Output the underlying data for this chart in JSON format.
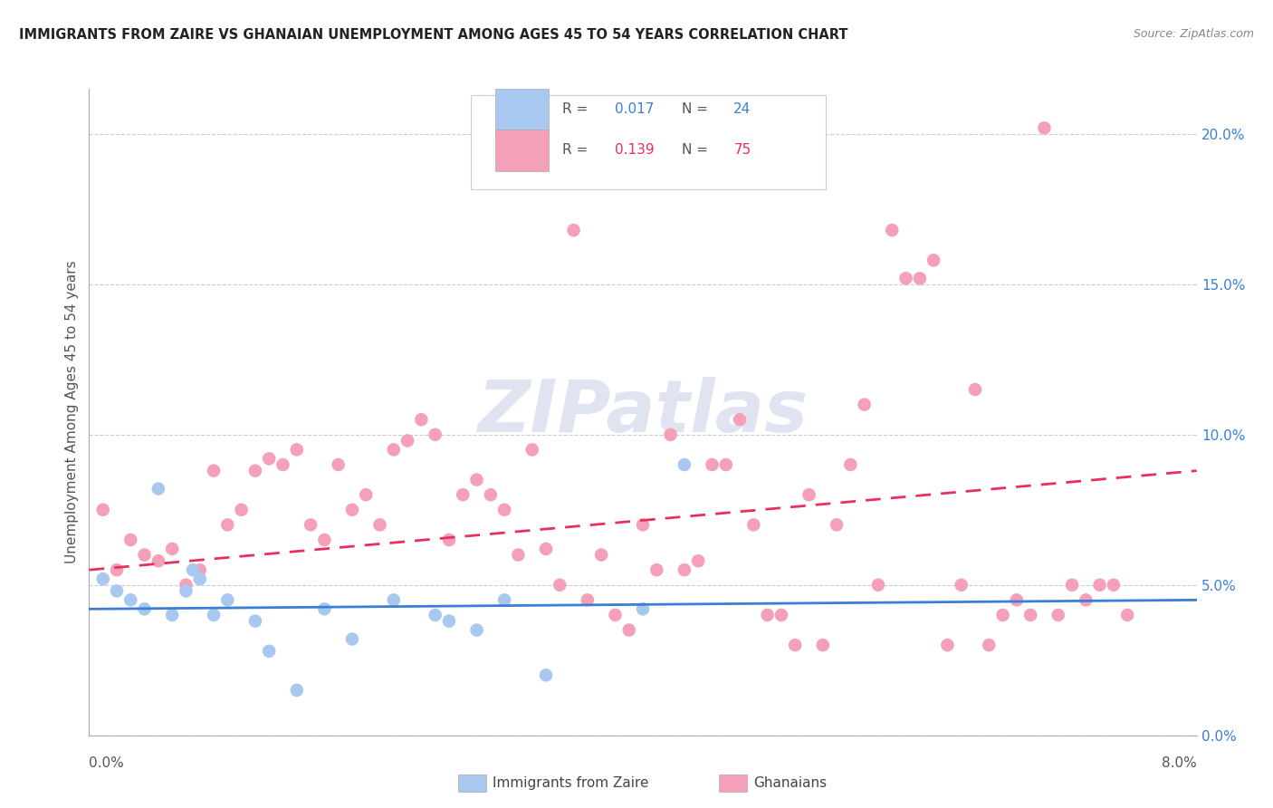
{
  "title": "IMMIGRANTS FROM ZAIRE VS GHANAIAN UNEMPLOYMENT AMONG AGES 45 TO 54 YEARS CORRELATION CHART",
  "source": "Source: ZipAtlas.com",
  "ylabel": "Unemployment Among Ages 45 to 54 years",
  "right_yticks": [
    "0.0%",
    "5.0%",
    "10.0%",
    "15.0%",
    "20.0%"
  ],
  "right_ytick_vals": [
    0.0,
    5.0,
    10.0,
    15.0,
    20.0
  ],
  "zaire_color": "#a8c8f0",
  "ghana_color": "#f4a0b8",
  "zaire_line_color": "#3a7fd5",
  "ghana_line_color": "#e8305a",
  "watermark_color": "#e0e4f0",
  "zaire_points_x": [
    0.001,
    0.002,
    0.003,
    0.004,
    0.005,
    0.006,
    0.007,
    0.0075,
    0.008,
    0.009,
    0.01,
    0.012,
    0.013,
    0.015,
    0.017,
    0.019,
    0.022,
    0.025,
    0.026,
    0.028,
    0.03,
    0.033,
    0.04,
    0.043
  ],
  "zaire_points_y": [
    5.2,
    4.8,
    4.5,
    4.2,
    8.2,
    4.0,
    4.8,
    5.5,
    5.2,
    4.0,
    4.5,
    3.8,
    2.8,
    1.5,
    4.2,
    3.2,
    4.5,
    4.0,
    3.8,
    3.5,
    4.5,
    2.0,
    4.2,
    9.0
  ],
  "ghana_points_x": [
    0.001,
    0.002,
    0.003,
    0.004,
    0.005,
    0.006,
    0.007,
    0.008,
    0.009,
    0.01,
    0.011,
    0.012,
    0.013,
    0.014,
    0.015,
    0.016,
    0.017,
    0.018,
    0.019,
    0.02,
    0.021,
    0.022,
    0.023,
    0.024,
    0.025,
    0.026,
    0.027,
    0.028,
    0.029,
    0.03,
    0.031,
    0.032,
    0.033,
    0.034,
    0.035,
    0.036,
    0.037,
    0.038,
    0.039,
    0.04,
    0.041,
    0.042,
    0.043,
    0.044,
    0.045,
    0.046,
    0.047,
    0.048,
    0.049,
    0.05,
    0.051,
    0.052,
    0.053,
    0.054,
    0.055,
    0.056,
    0.057,
    0.058,
    0.059,
    0.06,
    0.061,
    0.062,
    0.063,
    0.064,
    0.065,
    0.066,
    0.067,
    0.068,
    0.069,
    0.07,
    0.071,
    0.072,
    0.073,
    0.074,
    0.075
  ],
  "ghana_points_y": [
    7.5,
    5.5,
    6.5,
    6.0,
    5.8,
    6.2,
    5.0,
    5.5,
    8.8,
    7.0,
    7.5,
    8.8,
    9.2,
    9.0,
    9.5,
    7.0,
    6.5,
    9.0,
    7.5,
    8.0,
    7.0,
    9.5,
    9.8,
    10.5,
    10.0,
    6.5,
    8.0,
    8.5,
    8.0,
    7.5,
    6.0,
    9.5,
    6.2,
    5.0,
    16.8,
    4.5,
    6.0,
    4.0,
    3.5,
    7.0,
    5.5,
    10.0,
    5.5,
    5.8,
    9.0,
    9.0,
    10.5,
    7.0,
    4.0,
    4.0,
    3.0,
    8.0,
    3.0,
    7.0,
    9.0,
    11.0,
    5.0,
    16.8,
    15.2,
    15.2,
    15.8,
    3.0,
    5.0,
    11.5,
    3.0,
    4.0,
    4.5,
    4.0,
    20.2,
    4.0,
    5.0,
    4.5,
    5.0,
    5.0,
    4.0
  ],
  "zaire_line_x": [
    0.0,
    0.08
  ],
  "zaire_line_y": [
    4.2,
    4.5
  ],
  "ghana_line_x": [
    0.0,
    0.08
  ],
  "ghana_line_y": [
    5.5,
    8.8
  ],
  "x_min": 0.0,
  "x_max": 0.08,
  "y_min": 0.0,
  "y_max": 21.5,
  "grid_y_vals": [
    0.0,
    5.0,
    10.0,
    15.0,
    20.0
  ]
}
